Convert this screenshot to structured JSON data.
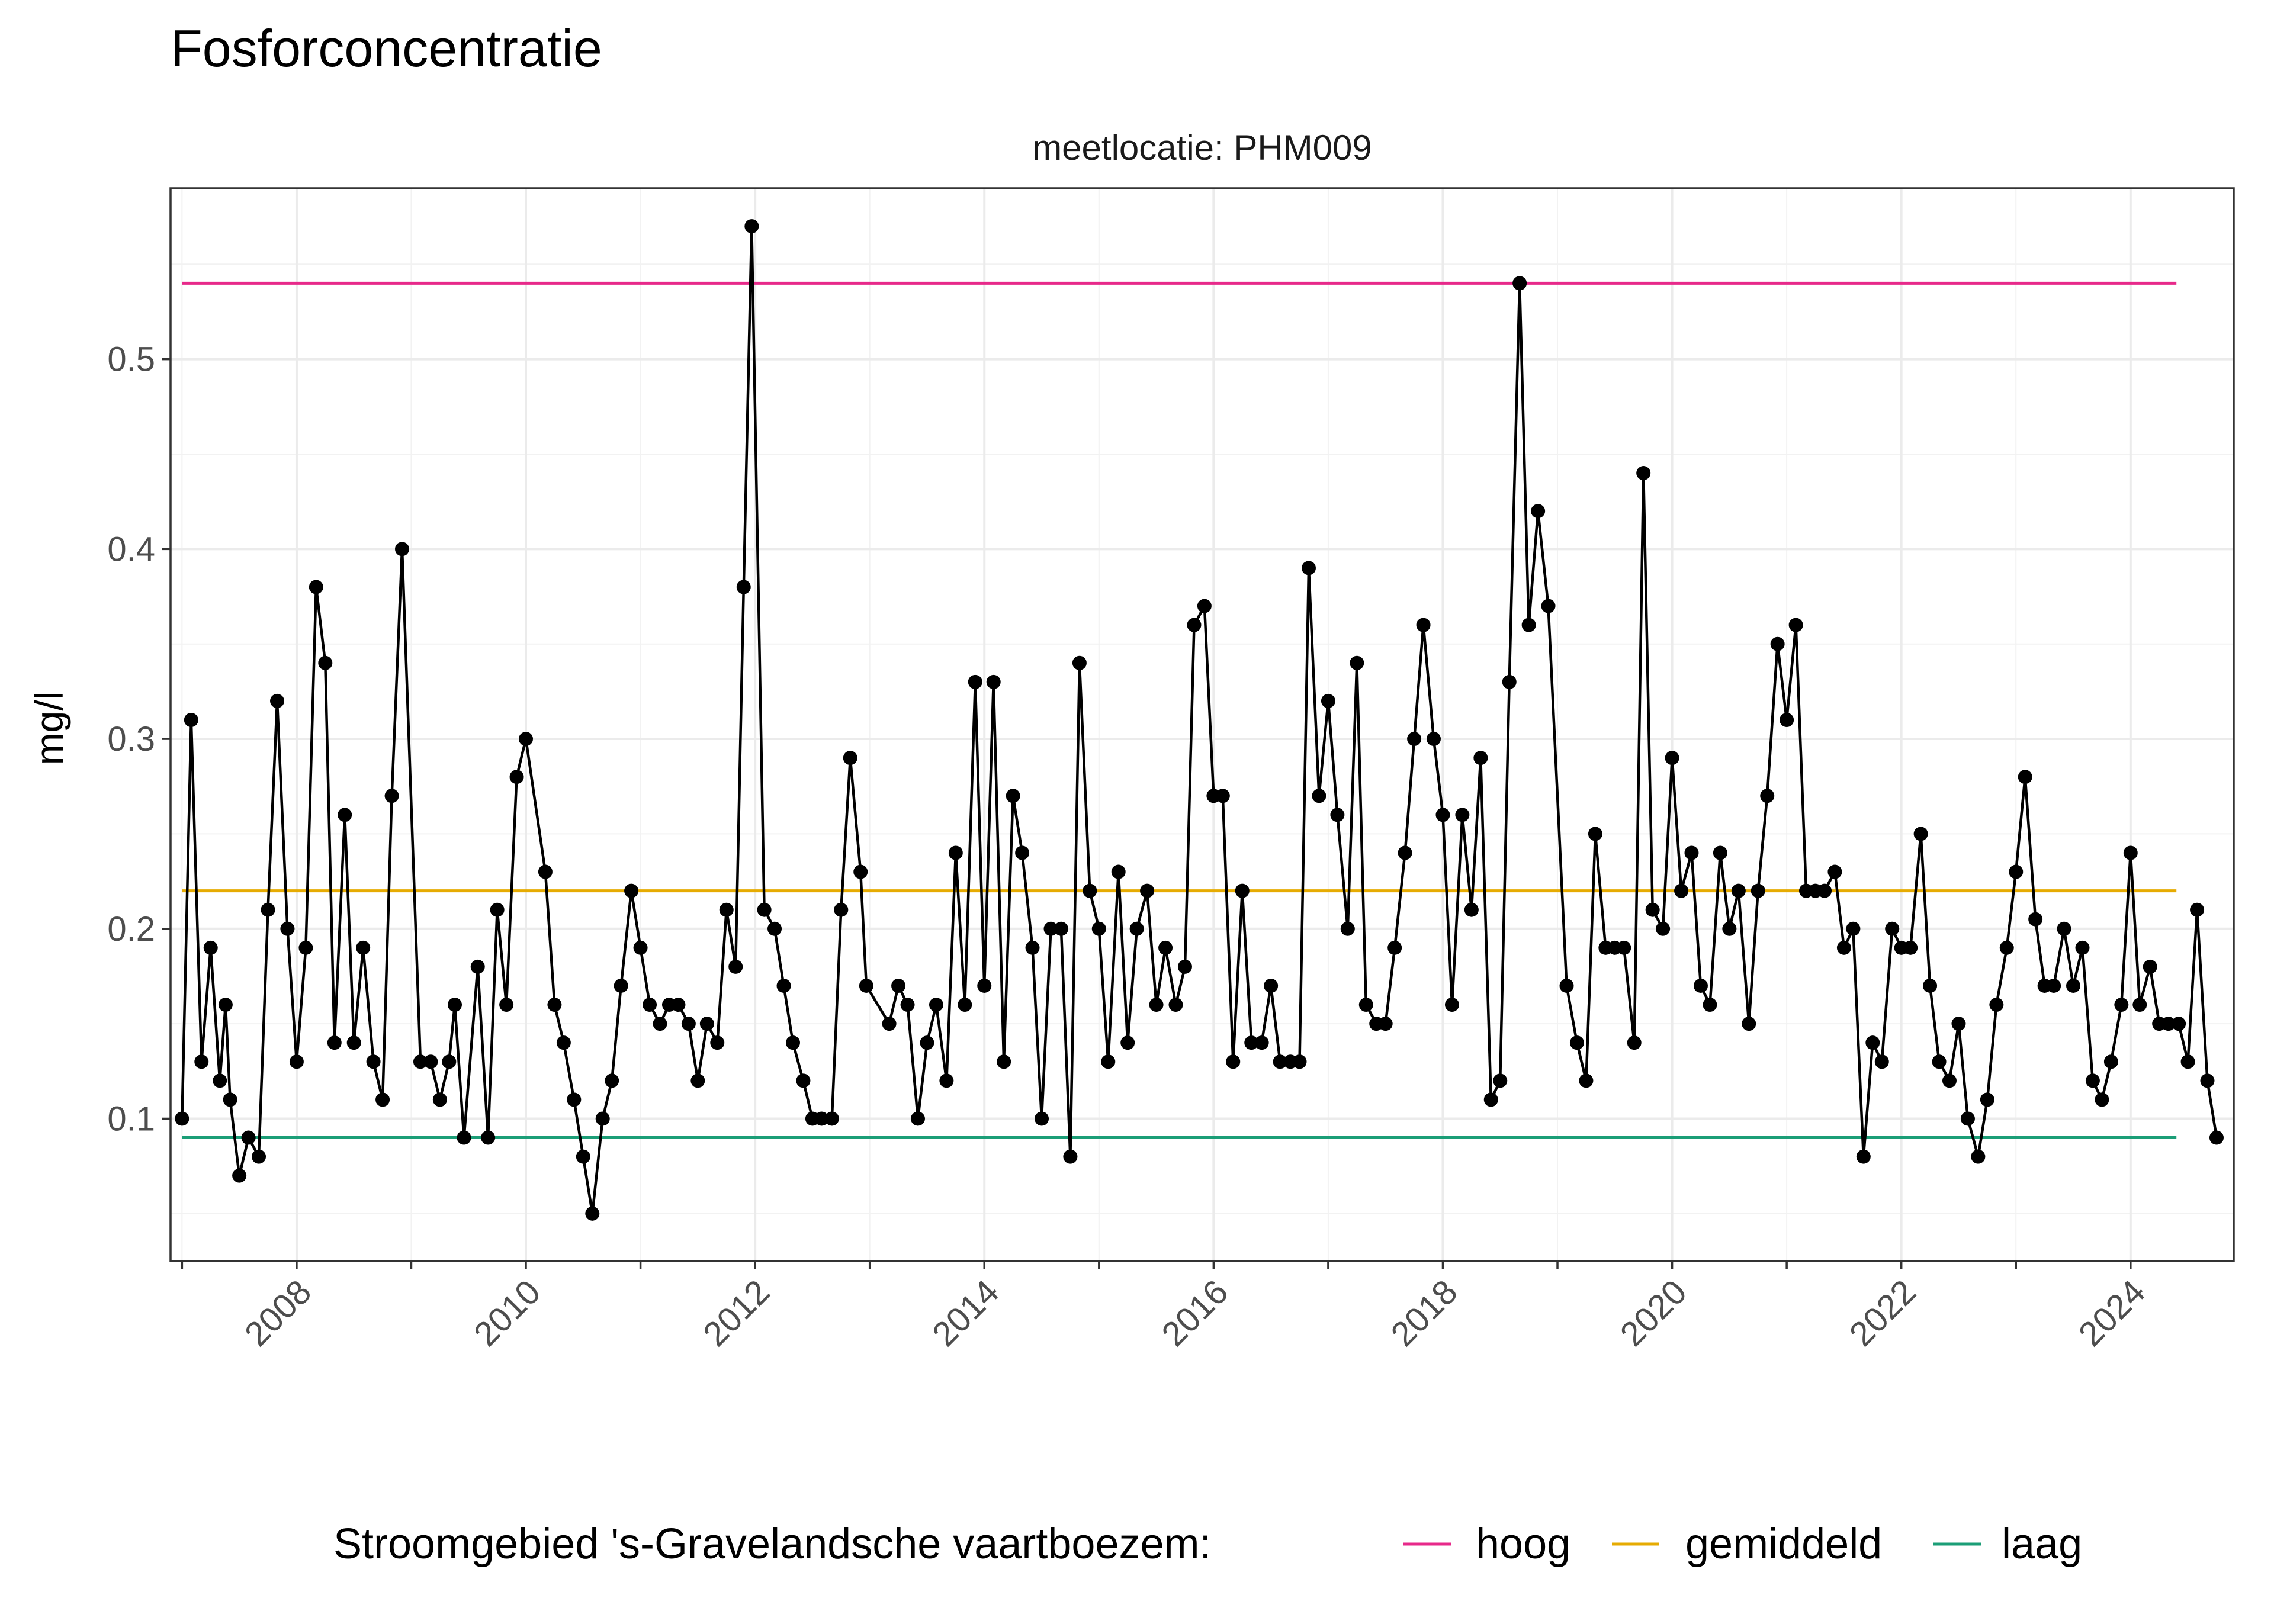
{
  "chart_data": {
    "type": "line",
    "title": "Fosforconcentratie",
    "facet_label": "meetlocatie: PHM009",
    "xlabel": "",
    "ylabel": "mg/l",
    "xlim": [
      2006.9,
      2024.9
    ],
    "ylim": [
      0.025,
      0.59
    ],
    "x_tick_labels": [
      "2008",
      "2010",
      "2012",
      "2014",
      "2016",
      "2018",
      "2020",
      "2022",
      "2024"
    ],
    "y_tick_labels": [
      "0.1",
      "0.2",
      "0.3",
      "0.4",
      "0.5"
    ],
    "grid": true,
    "legend": {
      "position": "bottom",
      "title": "Stroomgebied 's-Gravelandsche vaartboezem:",
      "entries": [
        {
          "label": "hoog",
          "color": "#E7298A"
        },
        {
          "label": "gemiddeld",
          "color": "#E6AB02"
        },
        {
          "label": "laag",
          "color": "#1B9E77"
        }
      ]
    },
    "reference_lines": [
      {
        "name": "hoog",
        "value": 0.54,
        "x_start": 2007.0,
        "x_end": 2024.4,
        "color": "#E7298A"
      },
      {
        "name": "gemiddeld",
        "value": 0.22,
        "x_start": 2007.0,
        "x_end": 2024.4,
        "color": "#E6AB02"
      },
      {
        "name": "laag",
        "value": 0.09,
        "x_start": 2007.0,
        "x_end": 2024.4,
        "color": "#1B9E77"
      }
    ],
    "series": [
      {
        "color": "#000000",
        "points": [
          [
            2007.0,
            0.1
          ],
          [
            2007.08,
            0.31
          ],
          [
            2007.17,
            0.13
          ],
          [
            2007.25,
            0.19
          ],
          [
            2007.33,
            0.12
          ],
          [
            2007.38,
            0.16
          ],
          [
            2007.42,
            0.11
          ],
          [
            2007.5,
            0.07
          ],
          [
            2007.58,
            0.09
          ],
          [
            2007.67,
            0.08
          ],
          [
            2007.75,
            0.21
          ],
          [
            2007.83,
            0.32
          ],
          [
            2007.92,
            0.2
          ],
          [
            2008.0,
            0.13
          ],
          [
            2008.08,
            0.19
          ],
          [
            2008.17,
            0.38
          ],
          [
            2008.25,
            0.34
          ],
          [
            2008.33,
            0.14
          ],
          [
            2008.42,
            0.26
          ],
          [
            2008.5,
            0.14
          ],
          [
            2008.58,
            0.19
          ],
          [
            2008.67,
            0.13
          ],
          [
            2008.75,
            0.11
          ],
          [
            2008.83,
            0.27
          ],
          [
            2008.92,
            0.4
          ],
          [
            2009.08,
            0.13
          ],
          [
            2009.17,
            0.13
          ],
          [
            2009.25,
            0.11
          ],
          [
            2009.33,
            0.13
          ],
          [
            2009.38,
            0.16
          ],
          [
            2009.46,
            0.09
          ],
          [
            2009.58,
            0.18
          ],
          [
            2009.67,
            0.09
          ],
          [
            2009.75,
            0.21
          ],
          [
            2009.83,
            0.16
          ],
          [
            2009.92,
            0.28
          ],
          [
            2010.0,
            0.3
          ],
          [
            2010.17,
            0.23
          ],
          [
            2010.25,
            0.16
          ],
          [
            2010.33,
            0.14
          ],
          [
            2010.42,
            0.11
          ],
          [
            2010.5,
            0.08
          ],
          [
            2010.58,
            0.05
          ],
          [
            2010.67,
            0.1
          ],
          [
            2010.75,
            0.12
          ],
          [
            2010.83,
            0.17
          ],
          [
            2010.92,
            0.22
          ],
          [
            2011.0,
            0.19
          ],
          [
            2011.08,
            0.16
          ],
          [
            2011.17,
            0.15
          ],
          [
            2011.25,
            0.16
          ],
          [
            2011.33,
            0.16
          ],
          [
            2011.42,
            0.15
          ],
          [
            2011.5,
            0.12
          ],
          [
            2011.58,
            0.15
          ],
          [
            2011.67,
            0.14
          ],
          [
            2011.75,
            0.21
          ],
          [
            2011.83,
            0.18
          ],
          [
            2011.9,
            0.38
          ],
          [
            2011.97,
            0.57
          ],
          [
            2012.08,
            0.21
          ],
          [
            2012.17,
            0.2
          ],
          [
            2012.25,
            0.17
          ],
          [
            2012.33,
            0.14
          ],
          [
            2012.42,
            0.12
          ],
          [
            2012.5,
            0.1
          ],
          [
            2012.58,
            0.1
          ],
          [
            2012.67,
            0.1
          ],
          [
            2012.75,
            0.21
          ],
          [
            2012.83,
            0.29
          ],
          [
            2012.92,
            0.23
          ],
          [
            2012.97,
            0.17
          ],
          [
            2013.17,
            0.15
          ],
          [
            2013.25,
            0.17
          ],
          [
            2013.33,
            0.16
          ],
          [
            2013.42,
            0.1
          ],
          [
            2013.5,
            0.14
          ],
          [
            2013.58,
            0.16
          ],
          [
            2013.67,
            0.12
          ],
          [
            2013.75,
            0.24
          ],
          [
            2013.83,
            0.16
          ],
          [
            2013.92,
            0.33
          ],
          [
            2014.0,
            0.17
          ],
          [
            2014.08,
            0.33
          ],
          [
            2014.17,
            0.13
          ],
          [
            2014.25,
            0.27
          ],
          [
            2014.33,
            0.24
          ],
          [
            2014.42,
            0.19
          ],
          [
            2014.5,
            0.1
          ],
          [
            2014.58,
            0.2
          ],
          [
            2014.67,
            0.2
          ],
          [
            2014.75,
            0.08
          ],
          [
            2014.83,
            0.34
          ],
          [
            2014.92,
            0.22
          ],
          [
            2015.0,
            0.2
          ],
          [
            2015.08,
            0.13
          ],
          [
            2015.17,
            0.23
          ],
          [
            2015.25,
            0.14
          ],
          [
            2015.33,
            0.2
          ],
          [
            2015.42,
            0.22
          ],
          [
            2015.5,
            0.16
          ],
          [
            2015.58,
            0.19
          ],
          [
            2015.67,
            0.16
          ],
          [
            2015.75,
            0.18
          ],
          [
            2015.83,
            0.36
          ],
          [
            2015.92,
            0.37
          ],
          [
            2016.0,
            0.27
          ],
          [
            2016.08,
            0.27
          ],
          [
            2016.17,
            0.13
          ],
          [
            2016.25,
            0.22
          ],
          [
            2016.33,
            0.14
          ],
          [
            2016.42,
            0.14
          ],
          [
            2016.5,
            0.17
          ],
          [
            2016.58,
            0.13
          ],
          [
            2016.67,
            0.13
          ],
          [
            2016.75,
            0.13
          ],
          [
            2016.83,
            0.39
          ],
          [
            2016.92,
            0.27
          ],
          [
            2017.0,
            0.32
          ],
          [
            2017.08,
            0.26
          ],
          [
            2017.17,
            0.2
          ],
          [
            2017.25,
            0.34
          ],
          [
            2017.33,
            0.16
          ],
          [
            2017.42,
            0.15
          ],
          [
            2017.5,
            0.15
          ],
          [
            2017.58,
            0.19
          ],
          [
            2017.67,
            0.24
          ],
          [
            2017.75,
            0.3
          ],
          [
            2017.83,
            0.36
          ],
          [
            2017.92,
            0.3
          ],
          [
            2018.0,
            0.26
          ],
          [
            2018.08,
            0.16
          ],
          [
            2018.17,
            0.26
          ],
          [
            2018.25,
            0.21
          ],
          [
            2018.33,
            0.29
          ],
          [
            2018.42,
            0.11
          ],
          [
            2018.5,
            0.12
          ],
          [
            2018.58,
            0.33
          ],
          [
            2018.67,
            0.54
          ],
          [
            2018.75,
            0.36
          ],
          [
            2018.83,
            0.42
          ],
          [
            2018.92,
            0.37
          ],
          [
            2019.08,
            0.17
          ],
          [
            2019.17,
            0.14
          ],
          [
            2019.25,
            0.12
          ],
          [
            2019.33,
            0.25
          ],
          [
            2019.42,
            0.19
          ],
          [
            2019.5,
            0.19
          ],
          [
            2019.58,
            0.19
          ],
          [
            2019.67,
            0.14
          ],
          [
            2019.75,
            0.44
          ],
          [
            2019.83,
            0.21
          ],
          [
            2019.92,
            0.2
          ],
          [
            2020.0,
            0.29
          ],
          [
            2020.08,
            0.22
          ],
          [
            2020.17,
            0.24
          ],
          [
            2020.25,
            0.17
          ],
          [
            2020.33,
            0.16
          ],
          [
            2020.42,
            0.24
          ],
          [
            2020.5,
            0.2
          ],
          [
            2020.58,
            0.22
          ],
          [
            2020.67,
            0.15
          ],
          [
            2020.75,
            0.22
          ],
          [
            2020.83,
            0.27
          ],
          [
            2020.92,
            0.35
          ],
          [
            2021.0,
            0.31
          ],
          [
            2021.08,
            0.36
          ],
          [
            2021.17,
            0.22
          ],
          [
            2021.25,
            0.22
          ],
          [
            2021.33,
            0.22
          ],
          [
            2021.42,
            0.23
          ],
          [
            2021.5,
            0.19
          ],
          [
            2021.58,
            0.2
          ],
          [
            2021.67,
            0.08
          ],
          [
            2021.75,
            0.14
          ],
          [
            2021.83,
            0.13
          ],
          [
            2021.92,
            0.2
          ],
          [
            2022.0,
            0.19
          ],
          [
            2022.08,
            0.19
          ],
          [
            2022.17,
            0.25
          ],
          [
            2022.25,
            0.17
          ],
          [
            2022.33,
            0.13
          ],
          [
            2022.42,
            0.12
          ],
          [
            2022.5,
            0.15
          ],
          [
            2022.58,
            0.1
          ],
          [
            2022.67,
            0.08
          ],
          [
            2022.75,
            0.11
          ],
          [
            2022.83,
            0.16
          ],
          [
            2022.92,
            0.19
          ],
          [
            2023.0,
            0.23
          ],
          [
            2023.08,
            0.28
          ],
          [
            2023.17,
            0.205
          ],
          [
            2023.25,
            0.17
          ],
          [
            2023.33,
            0.17
          ],
          [
            2023.42,
            0.2
          ],
          [
            2023.5,
            0.17
          ],
          [
            2023.58,
            0.19
          ],
          [
            2023.67,
            0.12
          ],
          [
            2023.75,
            0.11
          ],
          [
            2023.83,
            0.13
          ],
          [
            2023.92,
            0.16
          ],
          [
            2024.0,
            0.24
          ],
          [
            2024.08,
            0.16
          ],
          [
            2024.17,
            0.18
          ],
          [
            2024.25,
            0.15
          ],
          [
            2024.33,
            0.15
          ],
          [
            2024.42,
            0.15
          ],
          [
            2024.5,
            0.13
          ],
          [
            2024.58,
            0.21
          ],
          [
            2024.67,
            0.12
          ],
          [
            2024.75,
            0.09
          ]
        ]
      }
    ]
  }
}
